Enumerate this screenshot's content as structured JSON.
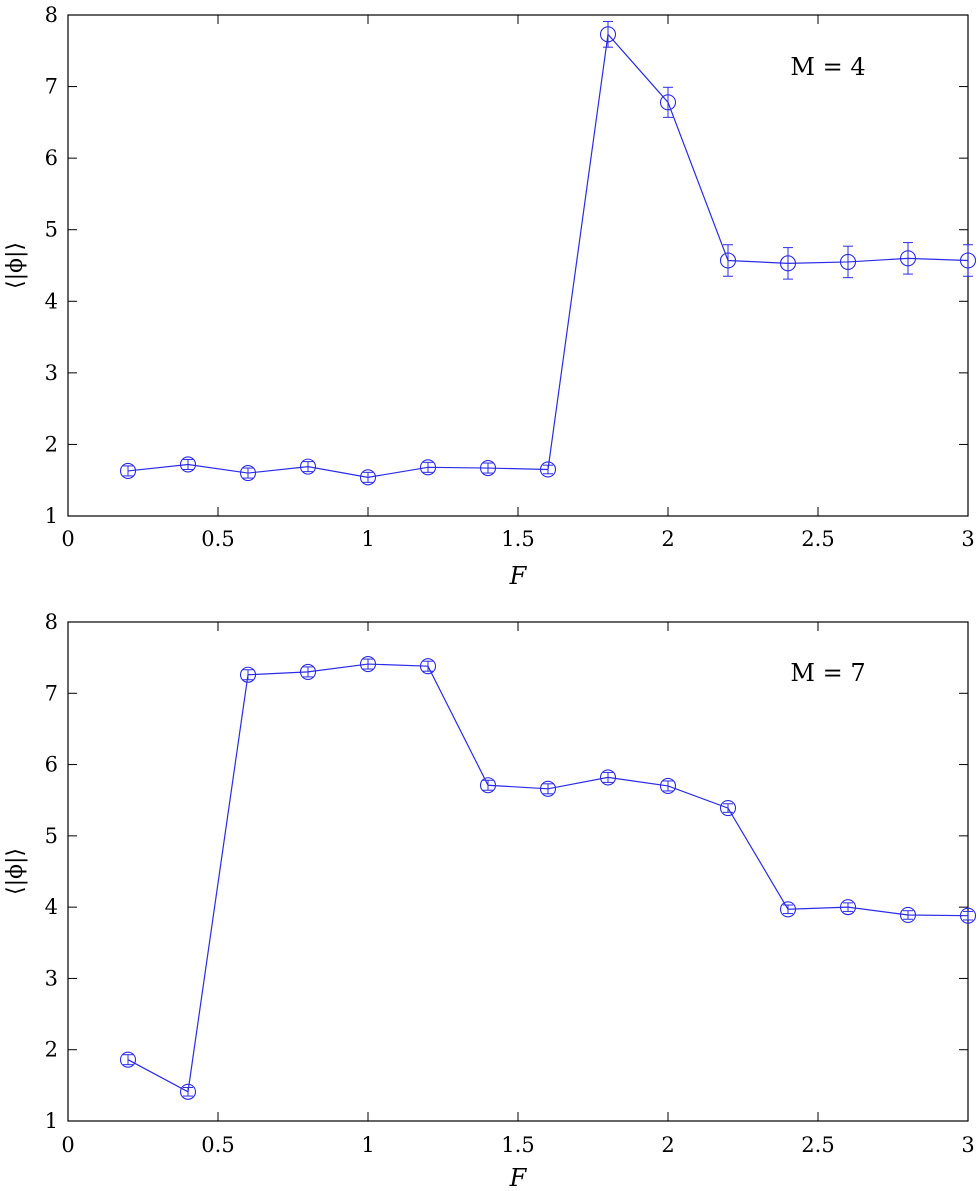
{
  "chart_data": [
    {
      "type": "line",
      "annotation": "M = 4",
      "xlabel": "F",
      "ylabel": "⟨|ϕ|⟩",
      "xlim": [
        0,
        3
      ],
      "ylim": [
        1,
        8
      ],
      "xticks": [
        "0",
        "0.5",
        "1",
        "1.5",
        "2",
        "2.5",
        "3"
      ],
      "yticks": [
        "1",
        "2",
        "3",
        "4",
        "5",
        "6",
        "7",
        "8"
      ],
      "grid": false,
      "marker": "open-circle",
      "error_bars": true,
      "color": "#2b2be6",
      "series": [
        {
          "x": [
            0.2,
            0.4,
            0.6,
            0.8,
            1.0,
            1.2,
            1.4,
            1.6,
            1.8,
            2.0,
            2.2,
            2.4,
            2.6,
            2.8,
            3.0
          ],
          "y": [
            1.63,
            1.72,
            1.6,
            1.69,
            1.54,
            1.68,
            1.67,
            1.65,
            7.73,
            6.78,
            4.57,
            4.53,
            4.55,
            4.6,
            4.57
          ],
          "err": [
            0.07,
            0.07,
            0.07,
            0.07,
            0.07,
            0.07,
            0.07,
            0.06,
            0.18,
            0.21,
            0.22,
            0.22,
            0.22,
            0.22,
            0.22
          ]
        }
      ]
    },
    {
      "type": "line",
      "annotation": "M = 7",
      "xlabel": "F",
      "ylabel": "⟨|ϕ|⟩",
      "xlim": [
        0,
        3
      ],
      "ylim": [
        1,
        8
      ],
      "xticks": [
        "0",
        "0.5",
        "1",
        "1.5",
        "2",
        "2.5",
        "3"
      ],
      "yticks": [
        "1",
        "2",
        "3",
        "4",
        "5",
        "6",
        "7",
        "8"
      ],
      "grid": false,
      "marker": "open-circle",
      "error_bars": true,
      "color": "#2b2be6",
      "series": [
        {
          "x": [
            0.2,
            0.4,
            0.6,
            0.8,
            1.0,
            1.2,
            1.4,
            1.6,
            1.8,
            2.0,
            2.2,
            2.4,
            2.6,
            2.8,
            3.0
          ],
          "y": [
            1.86,
            1.41,
            7.26,
            7.3,
            7.41,
            7.38,
            5.71,
            5.66,
            5.82,
            5.7,
            5.39,
            3.97,
            4.0,
            3.89,
            3.88
          ],
          "err": [
            0.07,
            0.06,
            0.07,
            0.07,
            0.07,
            0.07,
            0.07,
            0.07,
            0.07,
            0.07,
            0.06,
            0.06,
            0.06,
            0.06,
            0.06
          ]
        }
      ]
    }
  ]
}
